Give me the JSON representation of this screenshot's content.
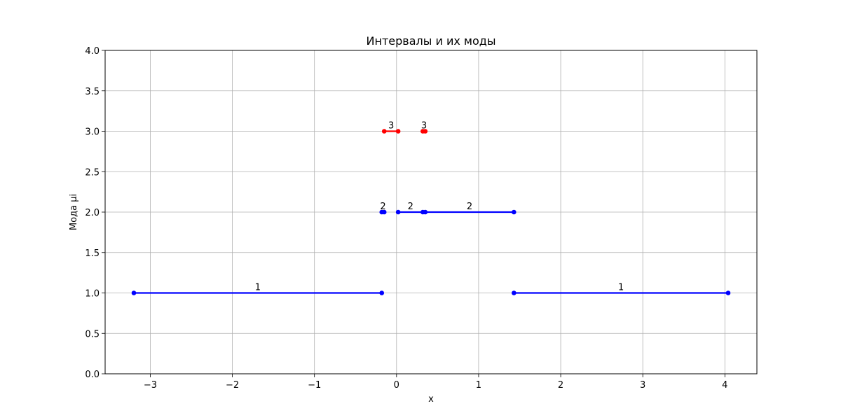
{
  "chart_data": {
    "type": "line",
    "title": "Интервалы и их моды",
    "xlabel": "x",
    "ylabel": "Мода μi",
    "xlim": [
      -3.55,
      4.39
    ],
    "ylim": [
      0.0,
      4.0
    ],
    "x_ticks": [
      -3,
      -2,
      -1,
      0,
      1,
      2,
      3,
      4
    ],
    "x_tick_labels": [
      "−3",
      "−2",
      "−1",
      "0",
      "1",
      "2",
      "3",
      "4"
    ],
    "y_ticks": [
      0.0,
      0.5,
      1.0,
      1.5,
      2.0,
      2.5,
      3.0,
      3.5,
      4.0
    ],
    "y_tick_labels": [
      "0.0",
      "0.5",
      "1.0",
      "1.5",
      "2.0",
      "2.5",
      "3.0",
      "3.5",
      "4.0"
    ],
    "grid": true,
    "colors": {
      "blue": "#0000ff",
      "red": "#ff0000",
      "grid": "#b0b0b0"
    },
    "segments": [
      {
        "x0": -3.2,
        "x1": -0.18,
        "y": 1,
        "label": "1",
        "color": "#0000ff"
      },
      {
        "x0": 1.43,
        "x1": 4.04,
        "y": 1,
        "label": "1",
        "color": "#0000ff"
      },
      {
        "x0": -0.18,
        "x1": -0.15,
        "y": 2,
        "label": "2",
        "color": "#0000ff"
      },
      {
        "x0": 0.02,
        "x1": 0.32,
        "y": 2,
        "label": "2",
        "color": "#0000ff"
      },
      {
        "x0": 0.35,
        "x1": 1.43,
        "y": 2,
        "label": "2",
        "color": "#0000ff"
      },
      {
        "x0": -0.15,
        "x1": 0.02,
        "y": 3,
        "label": "3",
        "color": "#ff0000"
      },
      {
        "x0": 0.32,
        "x1": 0.35,
        "y": 3,
        "label": "3",
        "color": "#ff0000"
      }
    ]
  }
}
